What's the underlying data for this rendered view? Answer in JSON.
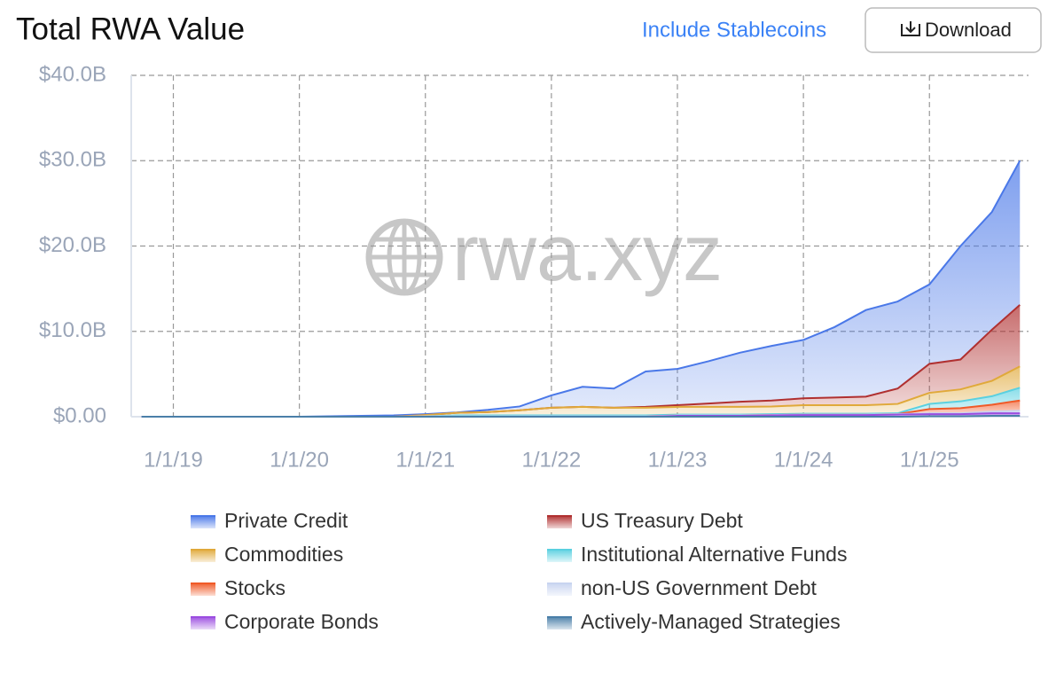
{
  "controls": {
    "toggle": "Include Stablecoins",
    "download": "Download"
  },
  "chart_data": {
    "type": "area",
    "stacked": true,
    "title": "Total RWA Value",
    "watermark": "rwa.xyz",
    "x": [
      "10/1/18",
      "1/1/19",
      "4/1/19",
      "7/1/19",
      "10/1/19",
      "1/1/20",
      "4/1/20",
      "7/1/20",
      "10/1/20",
      "1/1/21",
      "4/1/21",
      "7/1/21",
      "10/1/21",
      "1/1/22",
      "4/1/22",
      "7/1/22",
      "10/1/22",
      "1/1/23",
      "4/1/23",
      "7/1/23",
      "10/1/23",
      "1/1/24",
      "4/1/24",
      "7/1/24",
      "10/1/24",
      "1/1/25",
      "4/1/25",
      "7/1/25",
      "9/20/25"
    ],
    "xlim": [
      "9/1/18",
      "10/15/25"
    ],
    "xticks": [
      "1/1/19",
      "1/1/20",
      "1/1/21",
      "1/1/22",
      "1/1/23",
      "1/1/24",
      "1/1/25"
    ],
    "ylim": [
      0,
      40
    ],
    "yticks": [
      {
        "value": 0,
        "label": "$0.00"
      },
      {
        "value": 10,
        "label": "$10.0B"
      },
      {
        "value": 20,
        "label": "$20.0B"
      },
      {
        "value": 30,
        "label": "$30.0B"
      },
      {
        "value": 40,
        "label": "$40.0B"
      }
    ],
    "grid": true,
    "series": [
      {
        "name": "Private Credit",
        "color": "#4a78e8",
        "values": [
          0,
          0,
          0,
          0,
          0,
          0,
          0.05,
          0.1,
          0.15,
          0.1,
          0.05,
          0.25,
          0.45,
          1.45,
          2.35,
          2.25,
          4.15,
          4.25,
          4.95,
          5.75,
          6.4,
          6.85,
          8.25,
          10.15,
          10.2,
          9.3,
          13.3,
          13.8,
          16.9
        ]
      },
      {
        "name": "US Treasury Debt",
        "color": "#b03030",
        "values": [
          0,
          0,
          0,
          0,
          0,
          0,
          0,
          0,
          0,
          0,
          0,
          0,
          0,
          0,
          0,
          0,
          0.1,
          0.2,
          0.4,
          0.6,
          0.7,
          0.8,
          0.9,
          1.0,
          1.8,
          3.4,
          3.5,
          6.0,
          7.2
        ]
      },
      {
        "name": "Commodities",
        "color": "#e0a93a",
        "values": [
          0,
          0,
          0,
          0,
          0,
          0,
          0,
          0,
          0,
          0.15,
          0.3,
          0.4,
          0.6,
          0.9,
          1.0,
          0.9,
          0.9,
          0.9,
          0.9,
          0.9,
          0.9,
          1.0,
          1.0,
          1.0,
          1.1,
          1.3,
          1.4,
          1.8,
          2.5
        ]
      },
      {
        "name": "Institutional Alternative Funds",
        "color": "#5ad0e0",
        "values": [
          0,
          0,
          0,
          0,
          0,
          0,
          0,
          0,
          0,
          0,
          0.1,
          0.1,
          0.1,
          0.1,
          0.1,
          0.1,
          0.1,
          0.1,
          0.1,
          0.1,
          0.1,
          0.1,
          0.1,
          0.1,
          0.1,
          0.6,
          0.8,
          1.0,
          1.5
        ]
      },
      {
        "name": "Stocks",
        "color": "#f05a28",
        "values": [
          0,
          0,
          0,
          0,
          0,
          0,
          0,
          0,
          0,
          0,
          0,
          0,
          0,
          0,
          0,
          0,
          0,
          0,
          0,
          0,
          0,
          0,
          0,
          0,
          0,
          0.5,
          0.6,
          0.8,
          1.2
        ]
      },
      {
        "name": "non-US Government Debt",
        "color": "#c8d4f0",
        "values": [
          0,
          0,
          0,
          0,
          0,
          0,
          0,
          0,
          0,
          0.05,
          0.05,
          0.05,
          0.05,
          0.05,
          0.05,
          0.05,
          0.05,
          0.05,
          0.05,
          0.05,
          0.05,
          0.05,
          0.05,
          0.05,
          0.05,
          0.1,
          0.1,
          0.2,
          0.3
        ]
      },
      {
        "name": "Corporate Bonds",
        "color": "#9b4de0",
        "values": [
          0,
          0,
          0,
          0,
          0,
          0,
          0,
          0,
          0,
          0,
          0,
          0,
          0,
          0,
          0,
          0,
          0,
          0.1,
          0.1,
          0.1,
          0.15,
          0.2,
          0.2,
          0.2,
          0.25,
          0.25,
          0.25,
          0.3,
          0.3
        ]
      },
      {
        "name": "Actively-Managed Strategies",
        "color": "#4a7fa8",
        "values": [
          0,
          0,
          0,
          0,
          0,
          0,
          0,
          0,
          0,
          0,
          0,
          0,
          0,
          0,
          0,
          0,
          0,
          0,
          0,
          0,
          0,
          0,
          0,
          0,
          0,
          0.05,
          0.05,
          0.1,
          0.1
        ]
      }
    ]
  }
}
